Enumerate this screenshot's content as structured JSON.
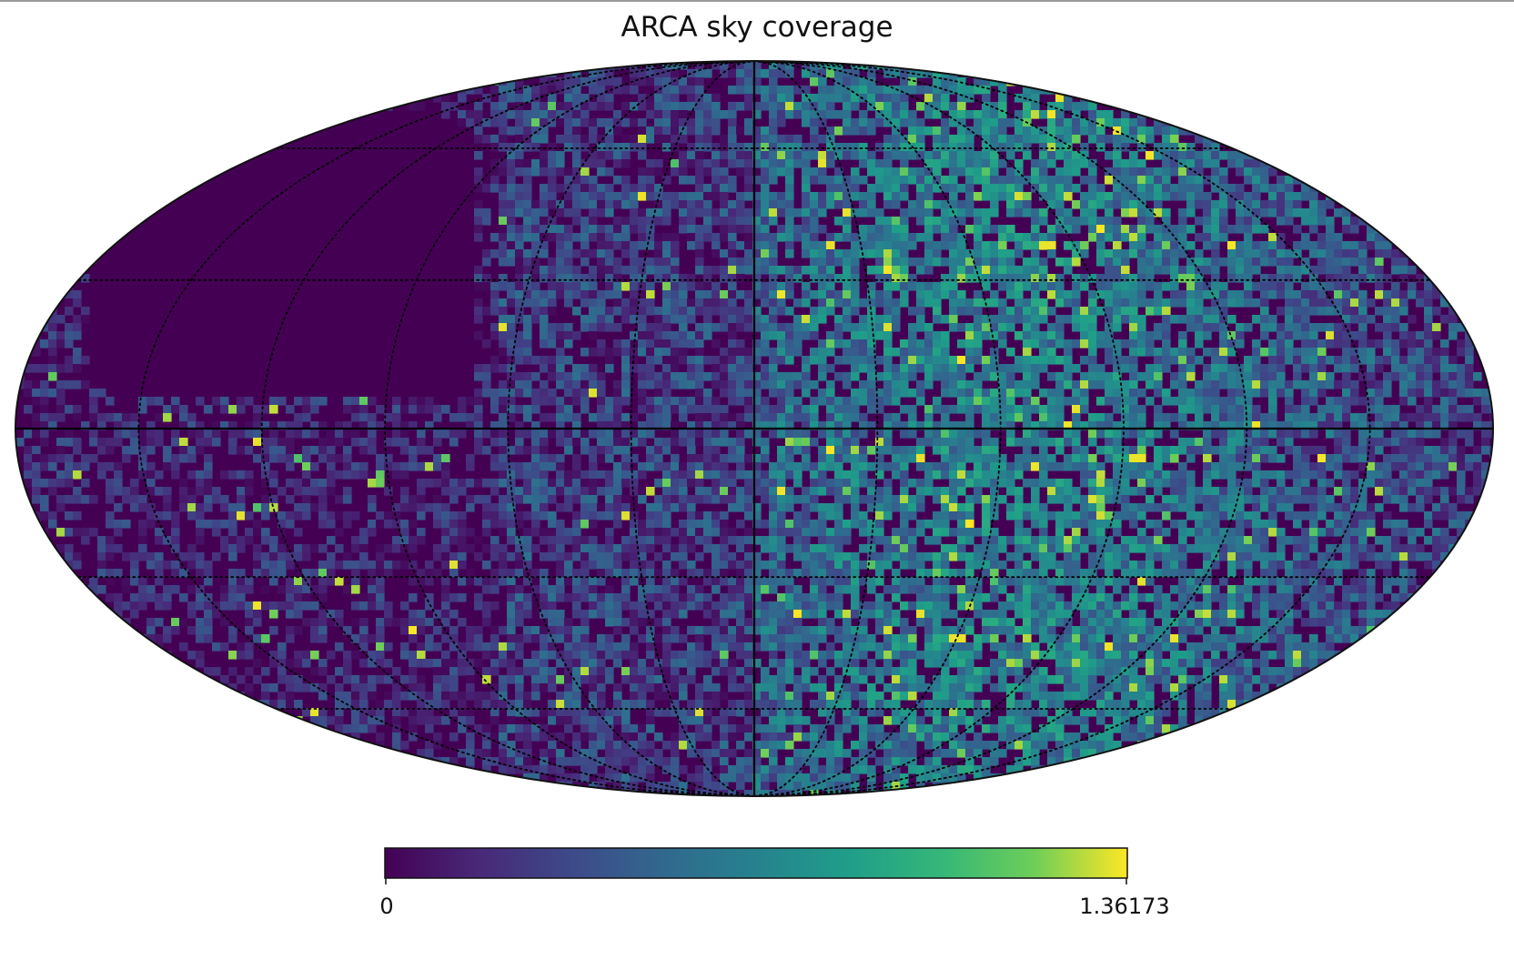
{
  "title": "ARCA sky coverage",
  "projection": "mollweide",
  "colormap": "viridis",
  "colorbar": {
    "min_label": "0",
    "max_label": "1.36173",
    "min": 0,
    "max": 1.36173
  },
  "graticule": {
    "style": "dotted",
    "longitude_step_deg": 30,
    "latitude_step_deg": 30
  },
  "axes_lines": {
    "equator": true,
    "central_meridian": true
  },
  "features": {
    "empty_region": "large zero-coverage region in upper-left (northern sky)",
    "bright_region": "higher coverage concentrated right of the central meridian"
  }
}
